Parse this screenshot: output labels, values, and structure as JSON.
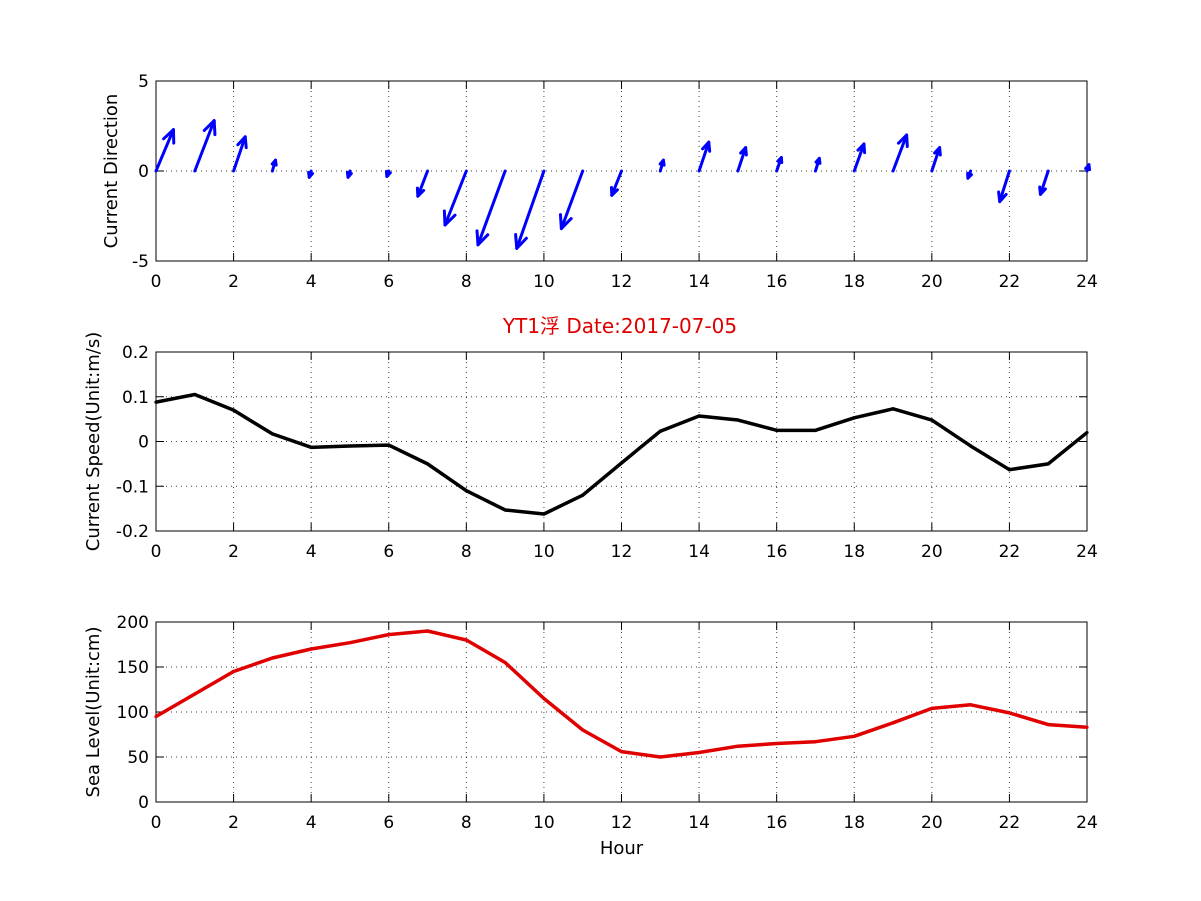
{
  "figure_title": "YT1浮   Date:2017-07-05",
  "colors": {
    "direction": "#0000ff",
    "speed": "#000000",
    "sea_level": "#e00000",
    "title": "#e00000"
  },
  "chart_data": [
    {
      "type": "quiver",
      "ylabel": "Current Direction",
      "xlim": [
        0,
        24
      ],
      "ylim": [
        -5,
        5
      ],
      "xticks": [
        0,
        2,
        4,
        6,
        8,
        10,
        12,
        14,
        16,
        18,
        20,
        22,
        24
      ],
      "yticks": [
        -5,
        0,
        5
      ],
      "grid": true,
      "arrows": [
        {
          "x": 0,
          "u": 0.45,
          "v": 2.3
        },
        {
          "x": 1,
          "u": 0.5,
          "v": 2.8
        },
        {
          "x": 2,
          "u": 0.3,
          "v": 1.9
        },
        {
          "x": 3,
          "u": 0.08,
          "v": 0.6
        },
        {
          "x": 4,
          "u": -0.05,
          "v": -0.35
        },
        {
          "x": 5,
          "u": -0.05,
          "v": -0.35
        },
        {
          "x": 6,
          "u": -0.05,
          "v": -0.3
        },
        {
          "x": 7,
          "u": -0.25,
          "v": -1.4
        },
        {
          "x": 8,
          "u": -0.55,
          "v": -3.0
        },
        {
          "x": 9,
          "u": -0.7,
          "v": -4.1
        },
        {
          "x": 10,
          "u": -0.7,
          "v": -4.3
        },
        {
          "x": 11,
          "u": -0.55,
          "v": -3.2
        },
        {
          "x": 12,
          "u": -0.25,
          "v": -1.35
        },
        {
          "x": 13,
          "u": 0.08,
          "v": 0.6
        },
        {
          "x": 14,
          "u": 0.25,
          "v": 1.6
        },
        {
          "x": 15,
          "u": 0.2,
          "v": 1.3
        },
        {
          "x": 16,
          "u": 0.12,
          "v": 0.75
        },
        {
          "x": 17,
          "u": 0.1,
          "v": 0.7
        },
        {
          "x": 18,
          "u": 0.25,
          "v": 1.5
        },
        {
          "x": 19,
          "u": 0.35,
          "v": 2.0
        },
        {
          "x": 20,
          "u": 0.2,
          "v": 1.3
        },
        {
          "x": 21,
          "u": -0.07,
          "v": -0.4
        },
        {
          "x": 22,
          "u": -0.25,
          "v": -1.7
        },
        {
          "x": 23,
          "u": -0.2,
          "v": -1.3
        },
        {
          "x": 24,
          "u": 0.05,
          "v": 0.35
        }
      ]
    },
    {
      "type": "line",
      "ylabel": "Current Speed(Unit:m/s)",
      "xlim": [
        0,
        24
      ],
      "ylim": [
        -0.2,
        0.2
      ],
      "xticks": [
        0,
        2,
        4,
        6,
        8,
        10,
        12,
        14,
        16,
        18,
        20,
        22,
        24
      ],
      "yticks": [
        -0.2,
        -0.1,
        0,
        0.1,
        0.2
      ],
      "ytick_labels": [
        "-0.2",
        "-0.1",
        "0",
        "0.1",
        "0.2"
      ],
      "grid": true,
      "x": [
        0,
        1,
        2,
        3,
        4,
        5,
        6,
        7,
        8,
        9,
        10,
        11,
        12,
        13,
        14,
        15,
        16,
        17,
        18,
        19,
        20,
        21,
        22,
        23,
        24
      ],
      "y": [
        0.088,
        0.105,
        0.07,
        0.017,
        -0.013,
        -0.01,
        -0.008,
        -0.05,
        -0.11,
        -0.153,
        -0.162,
        -0.12,
        -0.048,
        0.023,
        0.057,
        0.048,
        0.025,
        0.025,
        0.053,
        0.073,
        0.048,
        -0.01,
        -0.063,
        -0.05,
        0.02
      ]
    },
    {
      "type": "line",
      "xlabel": "Hour",
      "ylabel": "Sea Level(Unit:cm)",
      "xlim": [
        0,
        24
      ],
      "ylim": [
        0,
        200
      ],
      "xticks": [
        0,
        2,
        4,
        6,
        8,
        10,
        12,
        14,
        16,
        18,
        20,
        22,
        24
      ],
      "yticks": [
        0,
        50,
        100,
        150,
        200
      ],
      "grid": true,
      "x": [
        0,
        1,
        2,
        3,
        4,
        5,
        6,
        7,
        8,
        9,
        10,
        11,
        12,
        13,
        14,
        15,
        16,
        17,
        18,
        19,
        20,
        21,
        22,
        23,
        24
      ],
      "y": [
        95,
        120,
        145,
        160,
        170,
        177,
        186,
        190,
        180,
        155,
        115,
        80,
        56,
        50,
        55,
        62,
        65,
        67,
        73,
        88,
        104,
        108,
        99,
        86,
        83
      ]
    }
  ]
}
